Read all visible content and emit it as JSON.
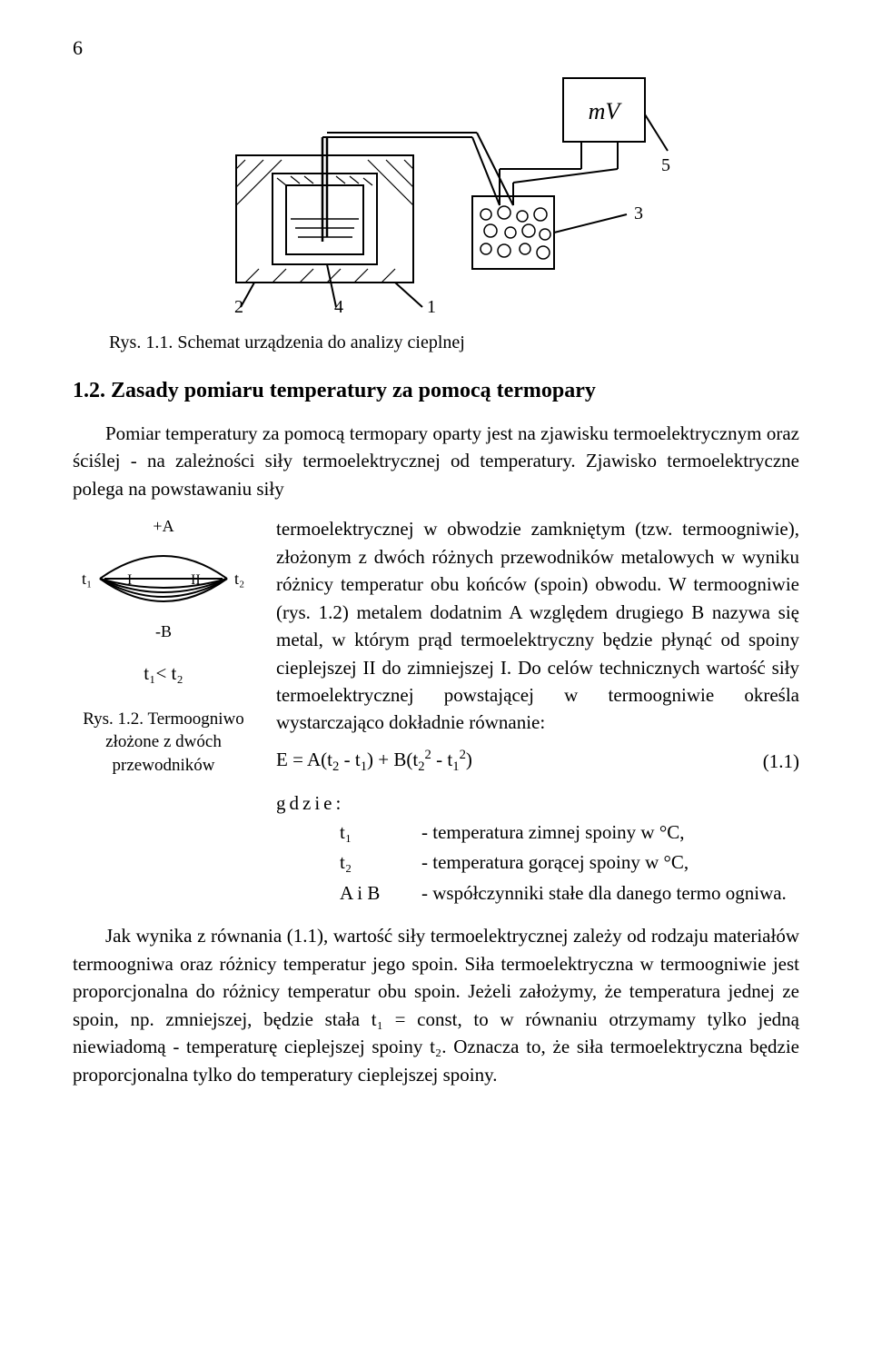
{
  "page": {
    "number": "6"
  },
  "figure_top": {
    "label_mV": "mV",
    "callouts": {
      "c1": "1",
      "c2": "2",
      "c3": "3",
      "c4": "4",
      "c5": "5"
    },
    "caption": "Rys. 1.1. Schemat urządzenia do analizy cieplnej"
  },
  "section": {
    "title": "1.2. Zasady pomiaru temperatury za pomocą termopary"
  },
  "para1_lead": "Pomiar temperatury za pomocą termopary oparty jest na zjawisku termoelektrycznym oraz ściślej - na zależności siły termoelektrycznej od temperatury. Zjawisko termoelektryczne polega na powstawaniu siły",
  "para1_wrapped": "termoelektrycznej w obwodzie zamkniętym (tzw. termoogniwie), złożonym z dwóch różnych przewodników metalowych w wyniku różnicy temperatur obu końców (spoin) obwodu. W termoogniwie (rys. 1.2) metalem dodatnim A względem drugiego B nazywa się metal, w którym prąd termoelektryczny będzie płynąć od spoiny cieplejszej II do zimniejszej I. Do celów technicznych wartość siły termoelektrycznej powstającej w termoogniwie określa wystarczająco dokładnie równanie:",
  "equation": {
    "html": "E = A(t<sub>2</sub> - t<sub>1</sub>) + B(t<sub>2</sub><sup>2</sup> - t<sub>1</sub><sup>2</sup>)",
    "number": "(1.1)"
  },
  "figure_side": {
    "plusA": "+A",
    "minusB": "-B",
    "t1": "t₁",
    "t2": "t₂",
    "I": "I",
    "II": "II",
    "ineq": "t₁<  t₂",
    "caption": "Rys. 1.2. Termoogniwo złożone z dwóch przewodników"
  },
  "where": {
    "lead": "gdzie:",
    "rows": [
      {
        "sym": "t₁",
        "desc": "- temperatura zimnej spoiny w °C,"
      },
      {
        "sym": "t₂",
        "desc": "- temperatura gorącej spoiny w °C,"
      },
      {
        "sym": "A i B",
        "desc": "- współczynniki stałe dla danego termo ogniwa."
      }
    ]
  },
  "para2": "Jak wynika z równania (1.1), wartość siły termoelektrycznej zależy od rodzaju materiałów termoogniwa oraz różnicy temperatur jego spoin. Siła termoelektryczna w termoogniwie jest proporcjonalna do różnicy temperatur obu spoin. Jeżeli założymy, że temperatura jednej ze spoin, np. zmniejszej, będzie stała t₁ = const, to w równaniu otrzymamy tylko jedną niewiadomą - temperaturę cieplejszej spoiny t₂. Oznacza to, że siła termoelektryczna będzie proporcjonalna tylko do temperatury cieplejszej spoiny."
}
